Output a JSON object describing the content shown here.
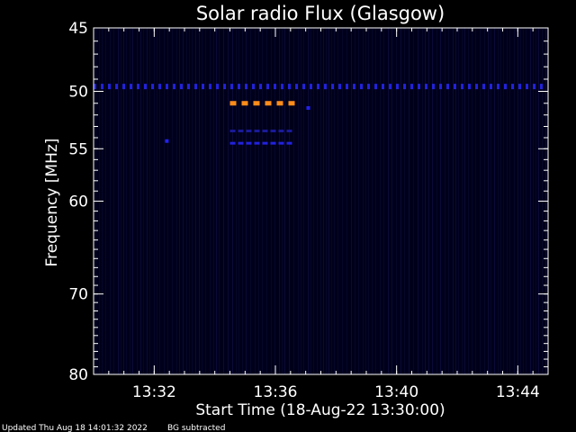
{
  "chart_data": {
    "type": "heatmap",
    "title": "Solar radio Flux (Glasgow)",
    "xlabel": "Start Time (18-Aug-22 13:30:00)",
    "ylabel": "Frequency [MHz]",
    "y_scale": "log",
    "ylim": [
      45,
      80
    ],
    "yticks": [
      {
        "value": 45,
        "label": "45"
      },
      {
        "value": 50,
        "label": "50"
      },
      {
        "value": 55,
        "label": "55"
      },
      {
        "value": 60,
        "label": "60"
      },
      {
        "value": 70,
        "label": "70"
      },
      {
        "value": 80,
        "label": "80"
      }
    ],
    "xlim": [
      "13:30:00",
      "13:45:00"
    ],
    "xticks": [
      {
        "value": "13:32",
        "label": "13:32"
      },
      {
        "value": "13:36",
        "label": "13:36"
      },
      {
        "value": "13:40",
        "label": "13:40"
      },
      {
        "value": "13:44",
        "label": "13:44"
      }
    ],
    "background_color": "#00001a",
    "features": [
      {
        "kind": "interference-band",
        "frequency": 49.6,
        "start": "13:30:00",
        "end": "13:45:00",
        "color": "#2222dd"
      },
      {
        "kind": "interference-band",
        "frequency": 51.0,
        "start": "13:34:30",
        "end": "13:36:45",
        "color": "#ff8c1a"
      },
      {
        "kind": "interference-band",
        "frequency": 53.4,
        "start": "13:34:30",
        "end": "13:36:45",
        "color": "#1a1a99"
      },
      {
        "kind": "interference-band",
        "frequency": 54.5,
        "start": "13:34:30",
        "end": "13:36:45",
        "color": "#2222dd"
      },
      {
        "kind": "spot",
        "frequency": 54.3,
        "time": "13:32:25",
        "color": "#2222ee"
      },
      {
        "kind": "spot",
        "frequency": 51.4,
        "time": "13:37:05",
        "color": "#2222ee"
      }
    ]
  },
  "footer": {
    "updated": "Updated Thu Aug 18 14:01:32 2022",
    "note": "BG subtracted"
  }
}
